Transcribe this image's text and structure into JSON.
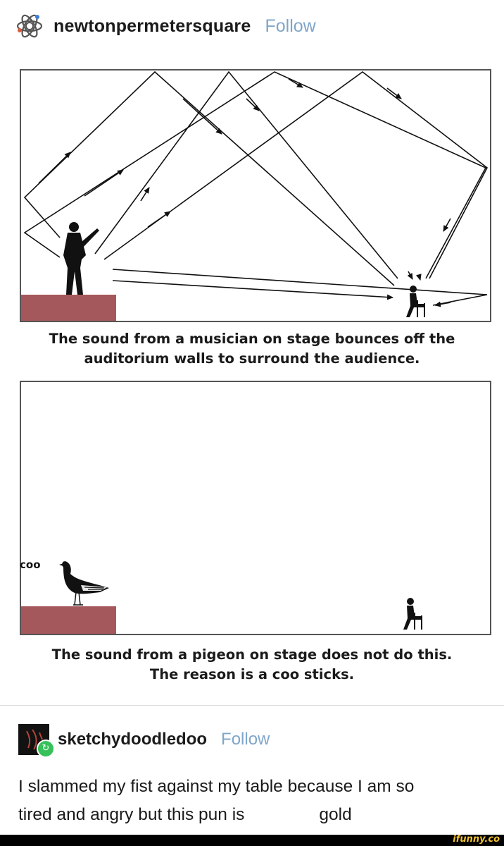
{
  "post": {
    "author": "newtonpermetersquare",
    "follow_label": "Follow",
    "avatar_icon": "atom-icon"
  },
  "diagram1": {
    "caption_line1": "The sound from a musician on stage bounces off the",
    "caption_line2": "auditorium walls to surround the audience."
  },
  "diagram2": {
    "sound_label": "coo",
    "caption_line1": "The sound from a pigeon on stage does not do this.",
    "caption_line2": "The reason is a coo sticks."
  },
  "reblog": {
    "author": "sketchydoodledoo",
    "follow_label": "Follow",
    "badge_icon": "reblog-icon",
    "comment_line1": "I slammed my fist against my table because I am so",
    "comment_line2_a": "tired and angry but this pun is",
    "comment_line2_b": "gold"
  },
  "watermark": "ifunny.co",
  "colors": {
    "follow": "#7fa6c9",
    "stage": "#a5585c",
    "badge": "#36c15a",
    "watermark": "#f2c230"
  }
}
